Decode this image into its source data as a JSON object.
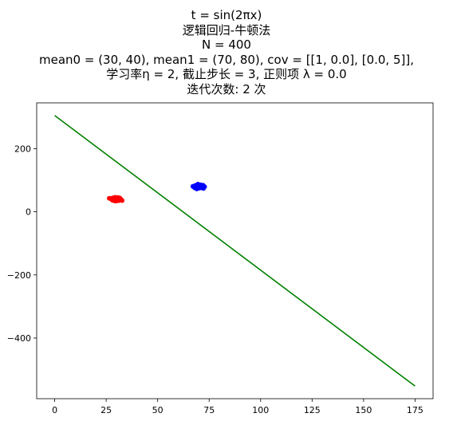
{
  "title_lines": [
    "t = sin(2πx)",
    "逻辑回归-牛顿法",
    "N = 400",
    "mean0 = (30, 40), mean1 = (70, 80), cov = [[1, 0.0], [0.0, 5]],",
    "学习率η = 2, 截止步长 = 3, 正则项 λ = 0.0",
    "迭代次数: 2 次"
  ],
  "chart_data": {
    "type": "scatter",
    "title": "t = sin(2πx) / 逻辑回归-牛顿法 / N = 400 / mean0 = (30, 40), mean1 = (70, 80), cov = [[1, 0.0], [0.0, 5]], / 学习率η = 2, 截止步长 = 3, 正则项 λ = 0.0 / 迭代次数: 2 次",
    "xlabel": "",
    "ylabel": "",
    "xlim": [
      -8.75,
      183.75
    ],
    "ylim": [
      -592,
      345
    ],
    "xticks": [
      0,
      25,
      50,
      75,
      100,
      125,
      150,
      175
    ],
    "yticks": [
      -400,
      -200,
      0,
      200
    ],
    "grid": false,
    "series": [
      {
        "color": "#ff0000",
        "kind": "scatter-cluster",
        "center": [
          30,
          40
        ],
        "std": [
          1.0,
          2.24
        ],
        "count": 200
      },
      {
        "color": "#0000ff",
        "kind": "scatter-cluster",
        "center": [
          70,
          80
        ],
        "std": [
          1.0,
          2.24
        ],
        "count": 200
      },
      {
        "color": "#008000",
        "kind": "line",
        "x": [
          0,
          175
        ],
        "y": [
          305,
          -552
        ]
      }
    ]
  }
}
